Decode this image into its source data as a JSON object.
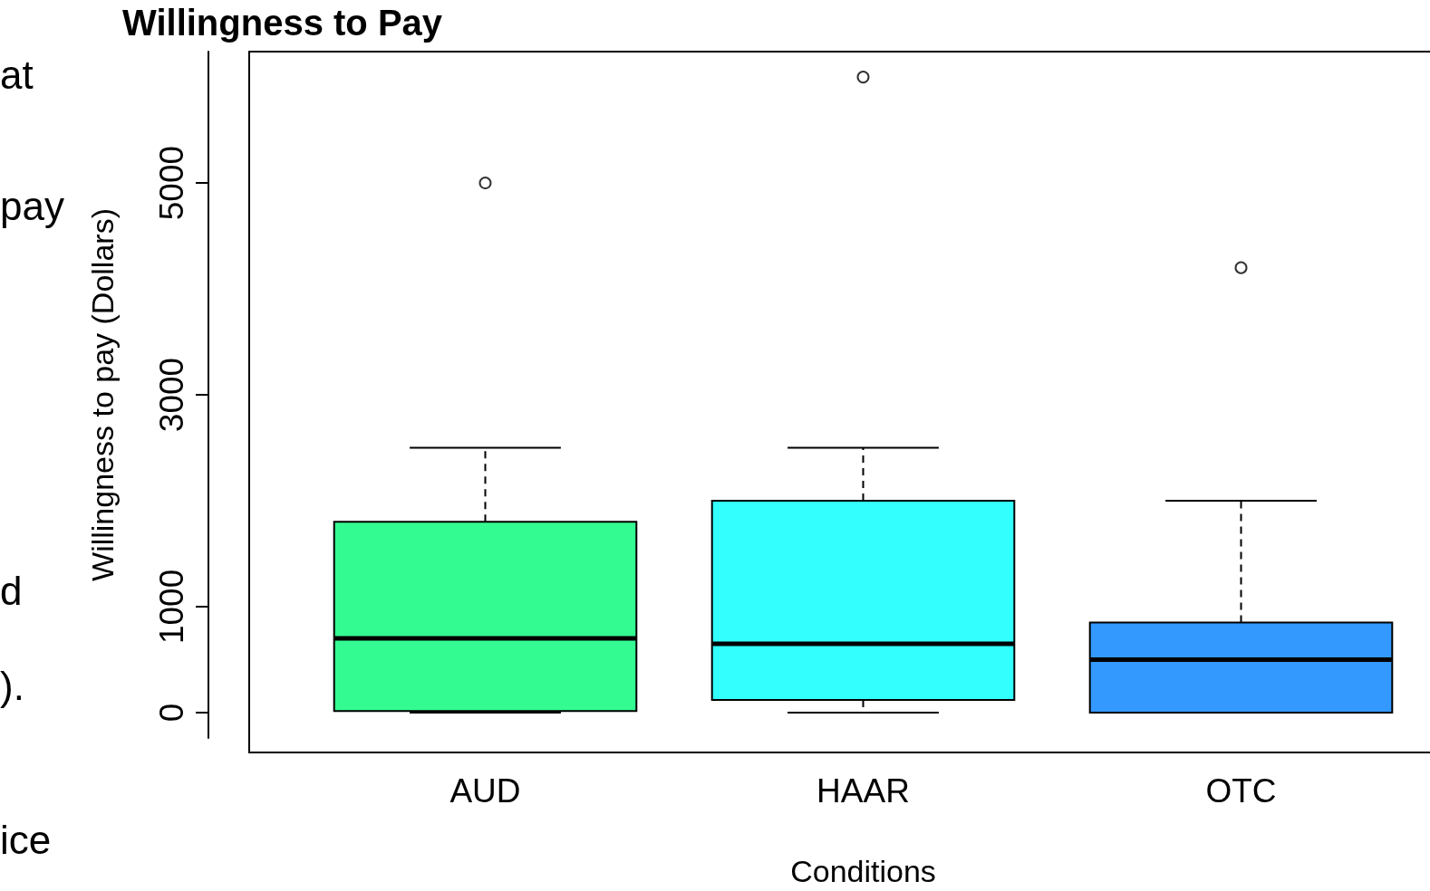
{
  "chart_data": {
    "type": "box",
    "title": "Willingness to Pay",
    "xlabel": "Conditions",
    "ylabel": "Willingness to pay (Dollars)",
    "categories": [
      "AUD",
      "HAAR",
      "OTC"
    ],
    "colors": [
      "#33fb92",
      "#33ffff",
      "#3399ff"
    ],
    "boxes": [
      {
        "low": 0,
        "q1": 15,
        "median": 700,
        "q3": 1800,
        "high": 2500,
        "outliers": [
          5000
        ]
      },
      {
        "low": 0,
        "q1": 120,
        "median": 650,
        "q3": 2000,
        "high": 2500,
        "outliers": [
          6000
        ]
      },
      {
        "low": 0,
        "q1": 0,
        "median": 500,
        "q3": 850,
        "high": 2000,
        "outliers": [
          4200
        ]
      }
    ],
    "ylim": [
      -240,
      6240
    ],
    "yticks": [
      0,
      1000,
      3000,
      5000
    ],
    "grid": false,
    "legend": false,
    "annotations": [
      "at",
      "pay",
      "d",
      ").",
      "ice"
    ]
  }
}
